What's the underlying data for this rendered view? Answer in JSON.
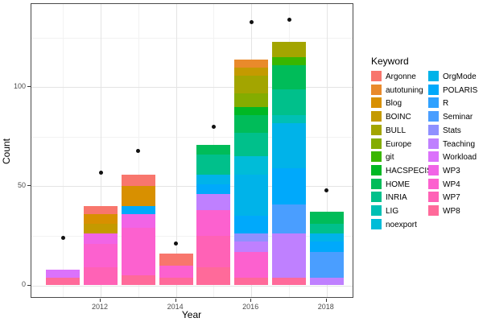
{
  "figure": {
    "background": "#ffffff"
  },
  "chart_data": {
    "type": "bar",
    "subtype": "stacked-bars-with-point-overlay",
    "title": "",
    "xlabel": "Year",
    "ylabel": "Count",
    "x_tick_labels": [
      "2012",
      "2014",
      "2016",
      "2018"
    ],
    "y_tick_labels": [
      "0",
      "50",
      "100"
    ],
    "y_major_breaks": [
      0,
      50,
      100
    ],
    "y_minor_breaks": [
      25,
      75,
      125
    ],
    "x_major_years": [
      2012,
      2014,
      2016,
      2018
    ],
    "x_minor_years": [
      2011,
      2013,
      2015,
      2017
    ],
    "ylim": [
      -7,
      142
    ],
    "grid": "on",
    "legend_position": "right",
    "keywords": [
      {
        "name": "Argonne",
        "color": "#F8766D"
      },
      {
        "name": "autotuning",
        "color": "#E98A2B"
      },
      {
        "name": "Blog",
        "color": "#D89000"
      },
      {
        "name": "BOINC",
        "color": "#C49A00"
      },
      {
        "name": "BULL",
        "color": "#A3A500"
      },
      {
        "name": "Europe",
        "color": "#84AC00"
      },
      {
        "name": "git",
        "color": "#39B600"
      },
      {
        "name": "HACSPECIS",
        "color": "#00B824"
      },
      {
        "name": "HOME",
        "color": "#00BC59"
      },
      {
        "name": "INRIA",
        "color": "#00C08B"
      },
      {
        "name": "LIG",
        "color": "#00C0B4"
      },
      {
        "name": "noexport",
        "color": "#00BCD8"
      },
      {
        "name": "OrgMode",
        "color": "#00B3E9"
      },
      {
        "name": "POLARIS",
        "color": "#00A9FB"
      },
      {
        "name": "R",
        "color": "#2FA1FF"
      },
      {
        "name": "Seminar",
        "color": "#4A9EFF"
      },
      {
        "name": "Stats",
        "color": "#8F90FF"
      },
      {
        "name": "Teaching",
        "color": "#BF80FF"
      },
      {
        "name": "Workload",
        "color": "#DB72FB"
      },
      {
        "name": "WP3",
        "color": "#F164E6"
      },
      {
        "name": "WP4",
        "color": "#FC61CF"
      },
      {
        "name": "WP7",
        "color": "#FF62B6"
      },
      {
        "name": "WP8",
        "color": "#FF6A9A"
      }
    ],
    "bars": [
      {
        "year": 2011,
        "total": 8,
        "segments_top_to_bottom": [
          {
            "keyword": "Workload",
            "value": 4
          },
          {
            "keyword": "WP8",
            "value": 4
          }
        ]
      },
      {
        "year": 2012,
        "total": 40,
        "segments_top_to_bottom": [
          {
            "keyword": "Argonne",
            "value": 4
          },
          {
            "keyword": "Blog",
            "value": 5
          },
          {
            "keyword": "BOINC",
            "value": 5
          },
          {
            "keyword": "WP3",
            "value": 5
          },
          {
            "keyword": "WP4",
            "value": 12
          },
          {
            "keyword": "WP7",
            "value": 9
          }
        ]
      },
      {
        "year": 2013,
        "total": 56,
        "segments_top_to_bottom": [
          {
            "keyword": "Argonne",
            "value": 6
          },
          {
            "keyword": "Blog",
            "value": 10
          },
          {
            "keyword": "POLARIS",
            "value": 4
          },
          {
            "keyword": "WP3",
            "value": 7
          },
          {
            "keyword": "WP4",
            "value": 24
          },
          {
            "keyword": "WP8",
            "value": 5
          }
        ]
      },
      {
        "year": 2014,
        "total": 16,
        "segments_top_to_bottom": [
          {
            "keyword": "Argonne",
            "value": 6
          },
          {
            "keyword": "WP4",
            "value": 6
          },
          {
            "keyword": "WP8",
            "value": 4
          }
        ]
      },
      {
        "year": 2015,
        "total": 71,
        "segments_top_to_bottom": [
          {
            "keyword": "HOME",
            "value": 5
          },
          {
            "keyword": "INRIA",
            "value": 10
          },
          {
            "keyword": "OrgMode",
            "value": 5
          },
          {
            "keyword": "POLARIS",
            "value": 5
          },
          {
            "keyword": "Teaching",
            "value": 8
          },
          {
            "keyword": "WP4",
            "value": 13
          },
          {
            "keyword": "WP7",
            "value": 16
          },
          {
            "keyword": "WP8",
            "value": 9
          }
        ]
      },
      {
        "year": 2016,
        "total": 114,
        "segments_top_to_bottom": [
          {
            "keyword": "autotuning",
            "value": 4
          },
          {
            "keyword": "BOINC",
            "value": 4
          },
          {
            "keyword": "BULL",
            "value": 9
          },
          {
            "keyword": "Europe",
            "value": 7
          },
          {
            "keyword": "HACSPECIS",
            "value": 4
          },
          {
            "keyword": "HOME",
            "value": 9
          },
          {
            "keyword": "INRIA",
            "value": 12
          },
          {
            "keyword": "noexport",
            "value": 9
          },
          {
            "keyword": "OrgMode",
            "value": 21
          },
          {
            "keyword": "POLARIS",
            "value": 9
          },
          {
            "keyword": "Stats",
            "value": 4
          },
          {
            "keyword": "Teaching",
            "value": 5
          },
          {
            "keyword": "WP4",
            "value": 13
          },
          {
            "keyword": "WP8",
            "value": 4
          }
        ]
      },
      {
        "year": 2017,
        "total": 123,
        "segments_top_to_bottom": [
          {
            "keyword": "BULL",
            "value": 8
          },
          {
            "keyword": "git",
            "value": 4
          },
          {
            "keyword": "HOME",
            "value": 12
          },
          {
            "keyword": "INRIA",
            "value": 13
          },
          {
            "keyword": "LIG",
            "value": 4
          },
          {
            "keyword": "OrgMode",
            "value": 23
          },
          {
            "keyword": "POLARIS",
            "value": 18
          },
          {
            "keyword": "Seminar",
            "value": 15
          },
          {
            "keyword": "Teaching",
            "value": 22
          },
          {
            "keyword": "WP8",
            "value": 4
          }
        ]
      },
      {
        "year": 2018,
        "total": 37,
        "segments_top_to_bottom": [
          {
            "keyword": "HOME",
            "value": 6
          },
          {
            "keyword": "INRIA",
            "value": 5
          },
          {
            "keyword": "OrgMode",
            "value": 4
          },
          {
            "keyword": "POLARIS",
            "value": 5
          },
          {
            "keyword": "Seminar",
            "value": 13
          },
          {
            "keyword": "Teaching",
            "value": 4
          }
        ]
      }
    ],
    "points": [
      {
        "year": 2011,
        "value": 24
      },
      {
        "year": 2012,
        "value": 57
      },
      {
        "year": 2013,
        "value": 68
      },
      {
        "year": 2014,
        "value": 21
      },
      {
        "year": 2015,
        "value": 80
      },
      {
        "year": 2016,
        "value": 133
      },
      {
        "year": 2017,
        "value": 134
      },
      {
        "year": 2018,
        "value": 48
      }
    ]
  },
  "legend": {
    "title": "Keyword",
    "column1": [
      "Argonne",
      "autotuning",
      "Blog",
      "BOINC",
      "BULL",
      "Europe",
      "git",
      "HACSPECIS",
      "HOME",
      "INRIA",
      "LIG",
      "noexport"
    ],
    "column2": [
      "OrgMode",
      "POLARIS",
      "R",
      "Seminar",
      "Stats",
      "Teaching",
      "Workload",
      "WP3",
      "WP4",
      "WP7",
      "WP8"
    ]
  }
}
